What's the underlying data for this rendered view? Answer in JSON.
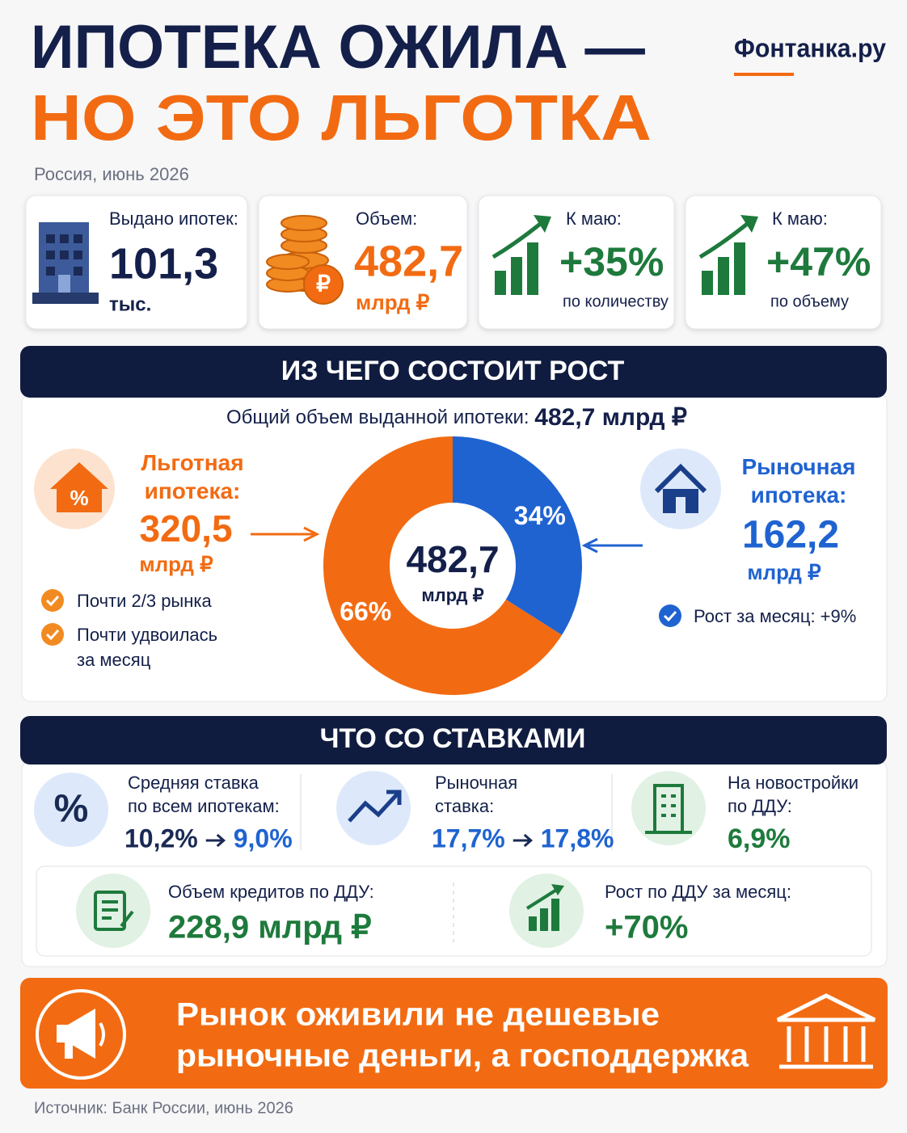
{
  "header": {
    "title_line1": "ИПОТЕКА ОЖИЛА —",
    "title_line2": "НО ЭТО ЛЬГОТКА",
    "brand": "Фонтанка.ру",
    "subtitle": "Россия, июнь 2026"
  },
  "stats": [
    {
      "label": "Выдано ипотек:",
      "value": "101,3",
      "unit": "тыс."
    },
    {
      "label": "Объем:",
      "value": "482,7",
      "unit": "млрд ₽"
    },
    {
      "label": "К маю:",
      "value": "+35%",
      "unit": "по количеству"
    },
    {
      "label": "К маю:",
      "value": "+47%",
      "unit": "по объему"
    }
  ],
  "growth": {
    "title": "ИЗ ЧЕГО СОСТОИТ РОСТ",
    "total_label": "Общий объем выданной ипотеки:",
    "total_value": "482,7 млрд ₽",
    "preferential": {
      "value": "320,5",
      "unit": "млрд ₽",
      "notes": [
        "Почти 2/3 рынка",
        [
          "Почти удвоилась",
          "за месяц"
        ]
      ]
    },
    "market": {
      "value": "162,2",
      "unit": "млрд ₽",
      "notes": [
        "Рост за месяц: +9%"
      ]
    }
  },
  "chart_data": {
    "type": "donut",
    "categories": [
      "Льготная ипотека:",
      "Рыночная ипотека:"
    ],
    "values": [
      66,
      34
    ],
    "value_labels": [
      "66%",
      "34%"
    ],
    "colors": [
      "#f26b12",
      "#1f63d1"
    ],
    "center_label": "482,7",
    "center_unit": "млрд ₽"
  },
  "rates": {
    "title": "ЧТО СО СТАВКАМИ",
    "items": [
      {
        "label": [
          "Средняя ставка",
          "по всем ипотекам:"
        ],
        "from": "10,2%",
        "to": "9,0%"
      },
      {
        "label": [
          "Рыночная",
          "ставка:"
        ],
        "from": "17,7%",
        "to": "17,8%"
      },
      {
        "label": [
          "На новостройки",
          "по ДДУ:"
        ],
        "value": "6,9%"
      }
    ],
    "ddu": [
      {
        "label": "Объем кредитов по ДДУ:",
        "value": "228,9 млрд ₽"
      },
      {
        "label": "Рост по ДДУ за месяц:",
        "value": "+70%"
      }
    ]
  },
  "banner": {
    "lines": [
      "Рынок оживили не дешевые",
      "рыночные деньги, а господдержка"
    ]
  },
  "footer": {
    "source": "Источник: Банк России, июнь 2026"
  }
}
